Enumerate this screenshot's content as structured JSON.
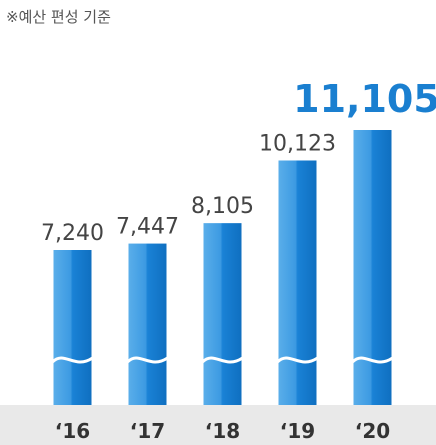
{
  "chart_data": {
    "type": "bar",
    "subtitle": "※예산 편성 기준",
    "categories": [
      "‘16",
      "‘17",
      "‘18",
      "‘19",
      "‘20"
    ],
    "values": [
      7240,
      7447,
      8105,
      10123,
      11105
    ],
    "value_labels": [
      "7,240",
      "7,447",
      "8,105",
      "10,123",
      "11,105"
    ],
    "color": "#1a82d6"
  }
}
